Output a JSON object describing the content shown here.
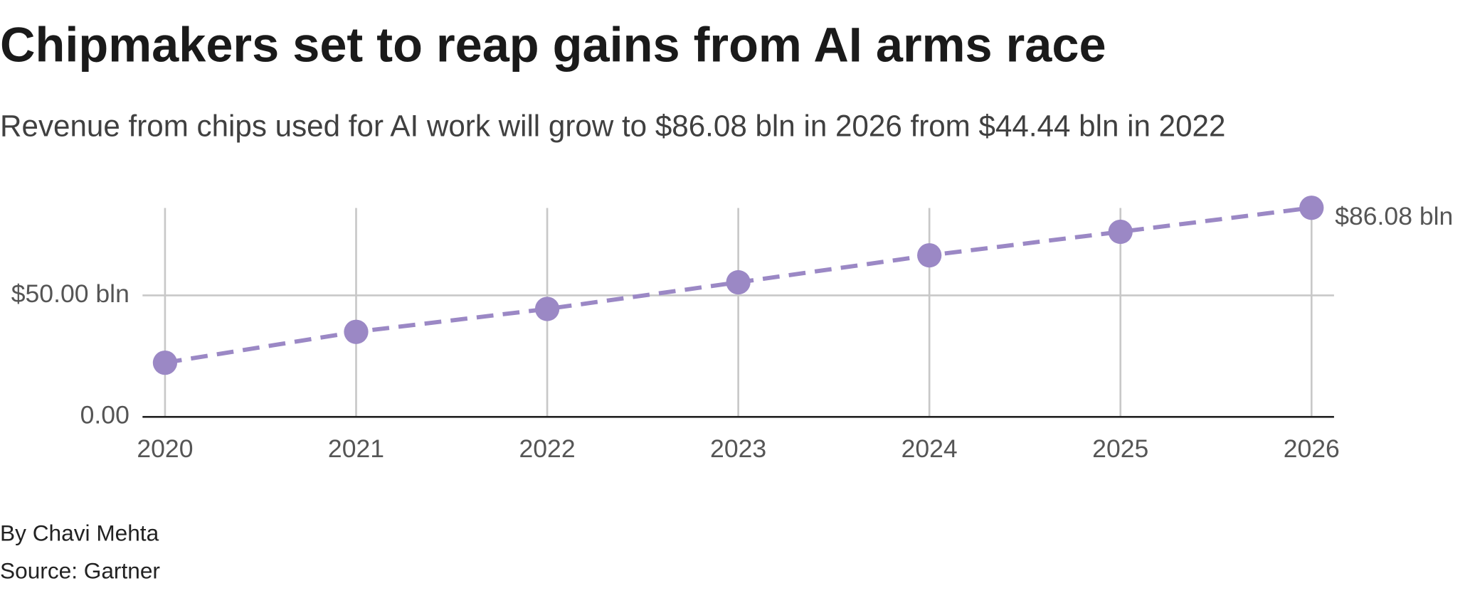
{
  "chart_data": {
    "type": "line",
    "title": "Chipmakers set to reap gains from AI arms race",
    "subtitle": "Revenue from chips used for AI work will grow to $86.08 bln in 2026 from $44.44 bln in 2022",
    "x": [
      2020,
      2021,
      2022,
      2023,
      2024,
      2025,
      2026
    ],
    "values": [
      22.3,
      35,
      44.44,
      55.4,
      66.5,
      76.2,
      86.08
    ],
    "value_labels": [
      null,
      null,
      null,
      null,
      null,
      null,
      "$86.08 bln"
    ],
    "color": "#9b88c5",
    "xlim": [
      2020,
      2026
    ],
    "xticks": [
      2020,
      2021,
      2022,
      2023,
      2024,
      2025,
      2026
    ],
    "ylim": [
      0,
      86
    ],
    "yticks": [
      {
        "value": 0,
        "label": "0.00"
      },
      {
        "value": 50,
        "label": "$50.00 bln"
      }
    ],
    "grid": true,
    "byline": "By Chavi Mehta",
    "source": "Source: Gartner"
  }
}
